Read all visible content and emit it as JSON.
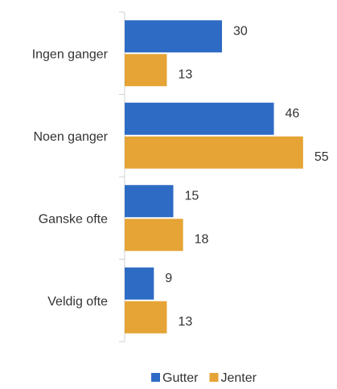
{
  "chart_data": {
    "type": "bar",
    "orientation": "horizontal",
    "categories": [
      "Ingen ganger",
      "Noen ganger",
      "Ganske ofte",
      "Veldig ofte"
    ],
    "series": [
      {
        "name": "Gutter",
        "color": "#2e6bc4",
        "values": [
          30,
          46,
          15,
          9
        ]
      },
      {
        "name": "Jenter",
        "color": "#e5a435",
        "values": [
          13,
          55,
          18,
          13
        ]
      }
    ],
    "xlim": [
      0,
      60
    ],
    "legend": "bottom"
  }
}
